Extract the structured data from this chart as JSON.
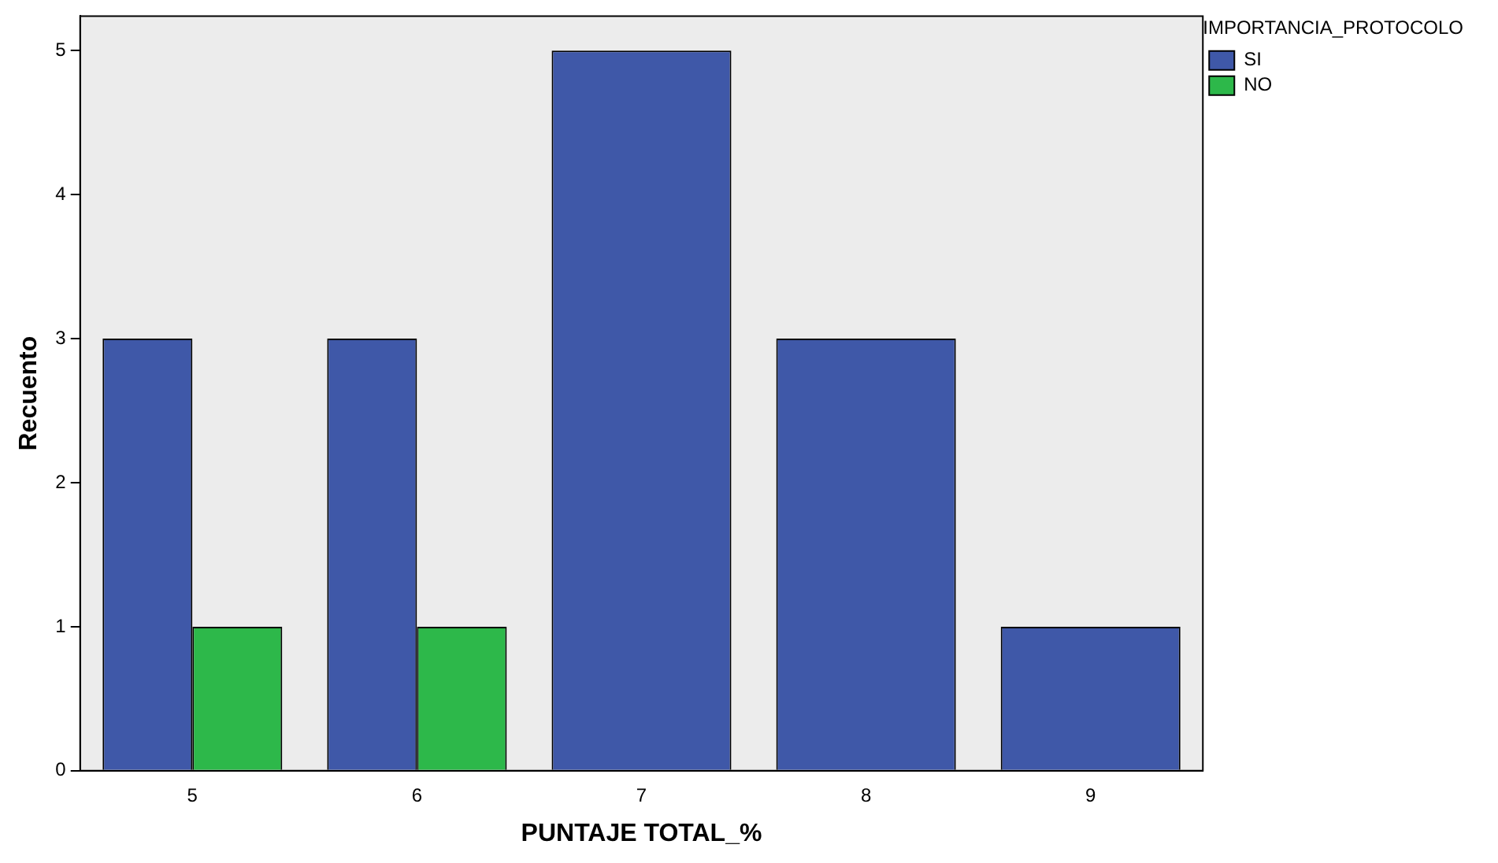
{
  "chart_data": {
    "type": "bar",
    "xlabel": "PUNTAJE TOTAL_%",
    "ylabel": "Recuento",
    "legend_title": "IMPORTANCIA_PROTOCOLO",
    "categories": [
      "5",
      "6",
      "7",
      "8",
      "9"
    ],
    "series": [
      {
        "name": "SI",
        "color": "#3f58a8",
        "values": [
          3,
          3,
          5,
          3,
          1
        ]
      },
      {
        "name": "NO",
        "color": "#2db84a",
        "values": [
          1,
          1,
          null,
          null,
          null
        ]
      }
    ],
    "ylim": [
      0,
      5.24
    ],
    "yticks": [
      0,
      1,
      2,
      3,
      4,
      5
    ],
    "grid": false,
    "legend": "top right"
  }
}
